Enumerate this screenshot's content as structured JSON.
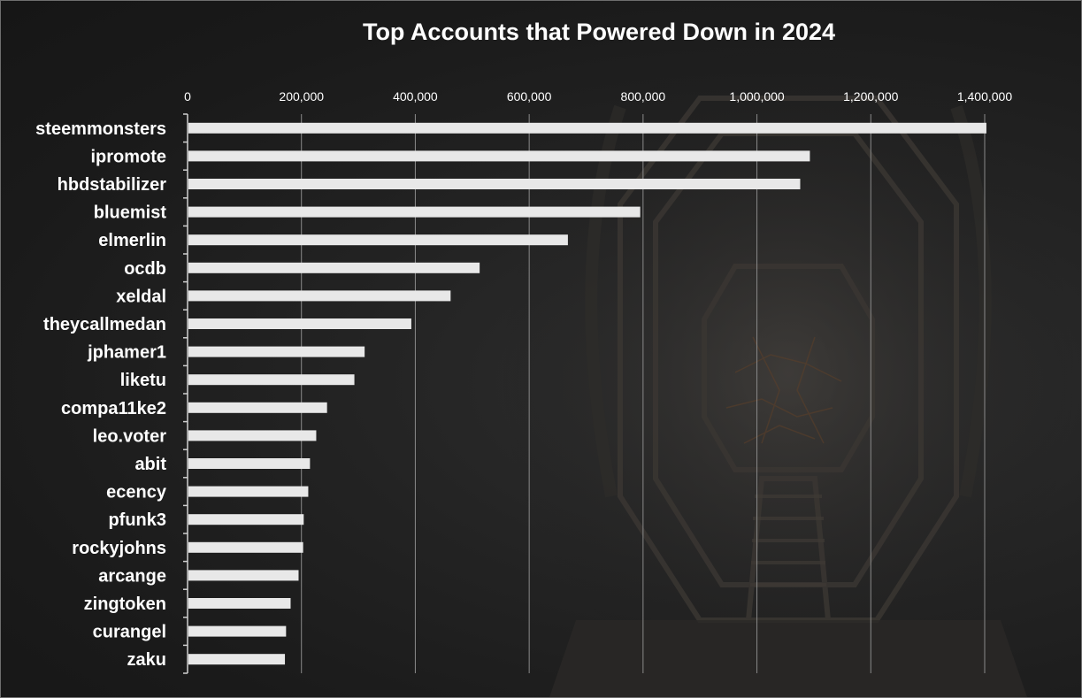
{
  "chart_data": {
    "type": "bar",
    "orientation": "horizontal",
    "title": "Top Accounts that Powered Down in 2024",
    "categories": [
      "steemmonsters",
      "ipromote",
      "hbdstabilizer",
      "bluemist",
      "elmerlin",
      "ocdb",
      "xeldal",
      "theycallmedan",
      "jphamer1",
      "liketu",
      "compa11ke2",
      "leo.voter",
      "abit",
      "ecency",
      "pfunk3",
      "rockyjohns",
      "arcange",
      "zingtoken",
      "curangel",
      "zaku"
    ],
    "values": [
      1403000,
      1093000,
      1076000,
      795000,
      668000,
      513000,
      462000,
      393000,
      311000,
      293000,
      245000,
      226000,
      215000,
      212000,
      204000,
      203000,
      195000,
      181000,
      173000,
      171000
    ],
    "xlim": [
      0,
      1400000
    ],
    "xticks": [
      0,
      200000,
      400000,
      600000,
      800000,
      1000000,
      1200000,
      1400000
    ],
    "xtick_labels": [
      "0",
      "200,000",
      "400,000",
      "600,000",
      "800,000",
      "1,000,000",
      "1,200,000",
      "1,400,000"
    ],
    "xlabel": "",
    "ylabel": "",
    "x_axis_position": "top",
    "grid": "vertical",
    "legend": "none",
    "colors": {
      "bar": "#e8e8e8",
      "text": "#ffffff",
      "grid": "#8a8a8a",
      "background": "#1c1c1c"
    }
  }
}
